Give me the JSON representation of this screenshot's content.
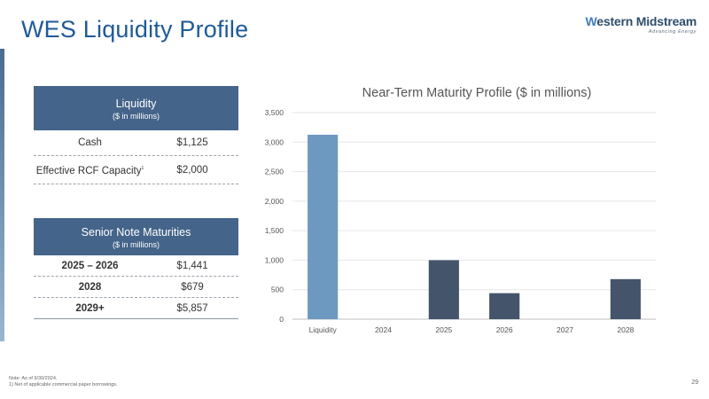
{
  "title": "WES Liquidity Profile",
  "logo": {
    "name_part1": "W",
    "name_part2": "estern Midstream",
    "tagline": "Advancing Energy"
  },
  "liquidity_table": {
    "header": "Liquidity",
    "subheader": "($ in millions)",
    "rows": [
      {
        "label": "Cash",
        "value": "$1,125"
      },
      {
        "label": "Effective RCF Capacity",
        "footnote_marker": "1",
        "value": "$2,000"
      }
    ]
  },
  "maturities_table": {
    "header": "Senior Note Maturities",
    "subheader": "($ in millions)",
    "rows": [
      {
        "label": "2025 – 2026",
        "value": "$1,441"
      },
      {
        "label": "2028",
        "value": "$679"
      },
      {
        "label": "2029+",
        "value": "$5,857"
      }
    ]
  },
  "chart_data": {
    "type": "bar",
    "title": "Near-Term Maturity Profile ($ in millions)",
    "categories": [
      "Liquidity",
      "2024",
      "2025",
      "2026",
      "2027",
      "2028"
    ],
    "values": [
      3125,
      0,
      1000,
      441,
      0,
      679
    ],
    "bar_colors": [
      "#6d99c1",
      "#44546a",
      "#44546a",
      "#44546a",
      "#44546a",
      "#44546a"
    ],
    "ylim": [
      0,
      3500
    ],
    "yticks": [
      0,
      500,
      1000,
      1500,
      2000,
      2500,
      3000,
      3500
    ],
    "ytick_labels": [
      "0",
      "500",
      "1,000",
      "1,500",
      "2,000",
      "2,500",
      "3,000",
      "3,500"
    ],
    "grid": true,
    "xlabel": "",
    "ylabel": ""
  },
  "footnotes": [
    "Note: As of 9/30/2024.",
    "1) Net of applicable commercial paper borrowings."
  ],
  "page_number": "29",
  "colors": {
    "title": "#1f5a99",
    "table_header": "#44648a",
    "liquidity_bar": "#6d99c1",
    "maturity_bar": "#44546a"
  }
}
